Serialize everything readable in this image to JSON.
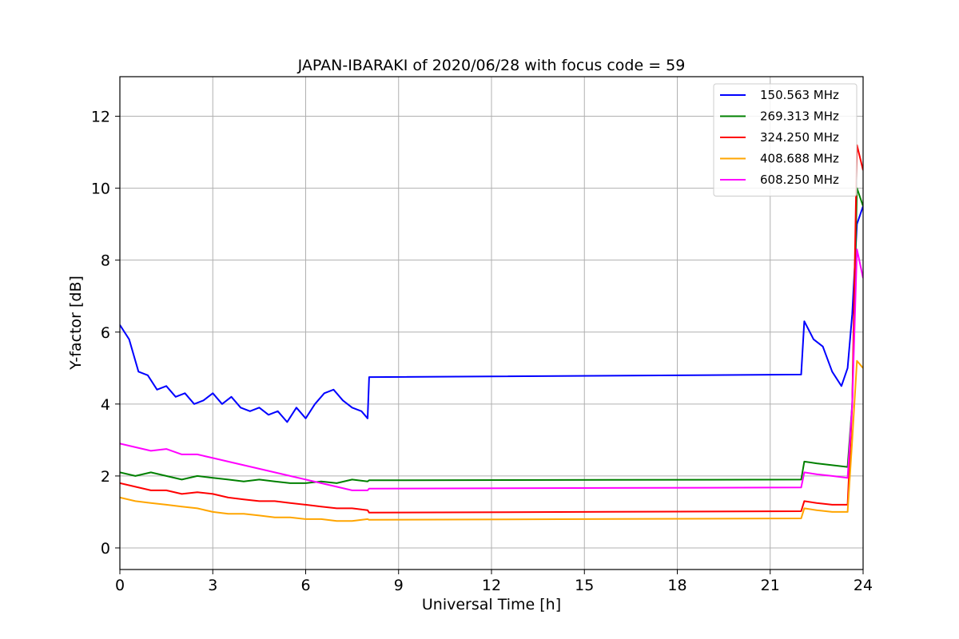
{
  "chart_data": {
    "type": "line",
    "title": "JAPAN-IBARAKI of 2020/06/28 with focus code = 59",
    "xlabel": "Universal Time [h]",
    "ylabel": "Y-factor [dB]",
    "xlim": [
      0,
      24
    ],
    "ylim": [
      -0.6,
      13.1
    ],
    "xticks": [
      0,
      3,
      6,
      9,
      12,
      15,
      18,
      21,
      24
    ],
    "yticks": [
      0,
      2,
      4,
      6,
      8,
      10,
      12
    ],
    "grid": true,
    "legend_position": "top-right",
    "series": [
      {
        "name": "150.563 MHz",
        "color": "#0000ff",
        "points": [
          [
            0,
            6.2
          ],
          [
            0.3,
            5.8
          ],
          [
            0.6,
            4.9
          ],
          [
            0.9,
            4.8
          ],
          [
            1.2,
            4.4
          ],
          [
            1.5,
            4.5
          ],
          [
            1.8,
            4.2
          ],
          [
            2.1,
            4.3
          ],
          [
            2.4,
            4.0
          ],
          [
            2.7,
            4.1
          ],
          [
            3.0,
            4.3
          ],
          [
            3.3,
            4.0
          ],
          [
            3.6,
            4.2
          ],
          [
            3.9,
            3.9
          ],
          [
            4.2,
            3.8
          ],
          [
            4.5,
            3.9
          ],
          [
            4.8,
            3.7
          ],
          [
            5.1,
            3.8
          ],
          [
            5.4,
            3.5
          ],
          [
            5.7,
            3.9
          ],
          [
            6.0,
            3.6
          ],
          [
            6.3,
            4.0
          ],
          [
            6.6,
            4.3
          ],
          [
            6.9,
            4.4
          ],
          [
            7.2,
            4.1
          ],
          [
            7.5,
            3.9
          ],
          [
            7.8,
            3.8
          ],
          [
            8.0,
            3.6
          ],
          [
            8.05,
            4.75
          ],
          [
            22.0,
            4.82
          ],
          [
            22.1,
            6.3
          ],
          [
            22.4,
            5.8
          ],
          [
            22.7,
            5.6
          ],
          [
            23.0,
            4.9
          ],
          [
            23.3,
            4.5
          ],
          [
            23.5,
            5.0
          ],
          [
            23.65,
            6.5
          ],
          [
            23.8,
            9.0
          ],
          [
            24.0,
            9.5
          ]
        ]
      },
      {
        "name": "269.313 MHz",
        "color": "#008000",
        "points": [
          [
            0,
            2.1
          ],
          [
            0.5,
            2.0
          ],
          [
            1.0,
            2.1
          ],
          [
            1.5,
            2.0
          ],
          [
            2.0,
            1.9
          ],
          [
            2.5,
            2.0
          ],
          [
            3.0,
            1.95
          ],
          [
            3.5,
            1.9
          ],
          [
            4.0,
            1.85
          ],
          [
            4.5,
            1.9
          ],
          [
            5.0,
            1.85
          ],
          [
            5.5,
            1.8
          ],
          [
            6.0,
            1.8
          ],
          [
            6.5,
            1.85
          ],
          [
            7.0,
            1.8
          ],
          [
            7.5,
            1.9
          ],
          [
            8.0,
            1.85
          ],
          [
            8.05,
            1.88
          ],
          [
            22.0,
            1.9
          ],
          [
            22.1,
            2.4
          ],
          [
            22.5,
            2.35
          ],
          [
            23.0,
            2.3
          ],
          [
            23.5,
            2.25
          ],
          [
            23.65,
            4.0
          ],
          [
            23.8,
            10.0
          ],
          [
            24.0,
            9.5
          ]
        ]
      },
      {
        "name": "324.250 MHz",
        "color": "#ff0000",
        "points": [
          [
            0,
            1.8
          ],
          [
            0.5,
            1.7
          ],
          [
            1.0,
            1.6
          ],
          [
            1.5,
            1.6
          ],
          [
            2.0,
            1.5
          ],
          [
            2.5,
            1.55
          ],
          [
            3.0,
            1.5
          ],
          [
            3.5,
            1.4
          ],
          [
            4.0,
            1.35
          ],
          [
            4.5,
            1.3
          ],
          [
            5.0,
            1.3
          ],
          [
            5.5,
            1.25
          ],
          [
            6.0,
            1.2
          ],
          [
            6.5,
            1.15
          ],
          [
            7.0,
            1.1
          ],
          [
            7.5,
            1.1
          ],
          [
            8.0,
            1.05
          ],
          [
            8.05,
            0.98
          ],
          [
            22.0,
            1.02
          ],
          [
            22.1,
            1.3
          ],
          [
            22.5,
            1.25
          ],
          [
            23.0,
            1.2
          ],
          [
            23.5,
            1.2
          ],
          [
            23.65,
            4.0
          ],
          [
            23.8,
            11.2
          ],
          [
            24.0,
            10.5
          ]
        ]
      },
      {
        "name": "408.688 MHz",
        "color": "#ffa500",
        "points": [
          [
            0,
            1.4
          ],
          [
            0.5,
            1.3
          ],
          [
            1.0,
            1.25
          ],
          [
            1.5,
            1.2
          ],
          [
            2.0,
            1.15
          ],
          [
            2.5,
            1.1
          ],
          [
            3.0,
            1.0
          ],
          [
            3.5,
            0.95
          ],
          [
            4.0,
            0.95
          ],
          [
            4.5,
            0.9
          ],
          [
            5.0,
            0.85
          ],
          [
            5.5,
            0.85
          ],
          [
            6.0,
            0.8
          ],
          [
            6.5,
            0.8
          ],
          [
            7.0,
            0.75
          ],
          [
            7.5,
            0.75
          ],
          [
            8.0,
            0.8
          ],
          [
            8.05,
            0.78
          ],
          [
            22.0,
            0.82
          ],
          [
            22.1,
            1.1
          ],
          [
            22.5,
            1.05
          ],
          [
            23.0,
            1.0
          ],
          [
            23.5,
            1.0
          ],
          [
            23.65,
            3.0
          ],
          [
            23.8,
            5.2
          ],
          [
            24.0,
            5.0
          ]
        ]
      },
      {
        "name": "608.250 MHz",
        "color": "#ff00ff",
        "points": [
          [
            0,
            2.9
          ],
          [
            0.5,
            2.8
          ],
          [
            1.0,
            2.7
          ],
          [
            1.5,
            2.75
          ],
          [
            2.0,
            2.6
          ],
          [
            2.5,
            2.6
          ],
          [
            3.0,
            2.5
          ],
          [
            3.5,
            2.4
          ],
          [
            4.0,
            2.3
          ],
          [
            4.5,
            2.2
          ],
          [
            5.0,
            2.1
          ],
          [
            5.5,
            2.0
          ],
          [
            6.0,
            1.9
          ],
          [
            6.5,
            1.8
          ],
          [
            7.0,
            1.7
          ],
          [
            7.5,
            1.6
          ],
          [
            8.0,
            1.6
          ],
          [
            8.05,
            1.65
          ],
          [
            22.0,
            1.68
          ],
          [
            22.1,
            2.1
          ],
          [
            22.5,
            2.05
          ],
          [
            23.0,
            2.0
          ],
          [
            23.5,
            1.95
          ],
          [
            23.65,
            4.0
          ],
          [
            23.8,
            8.3
          ],
          [
            24.0,
            7.5
          ]
        ]
      }
    ]
  }
}
